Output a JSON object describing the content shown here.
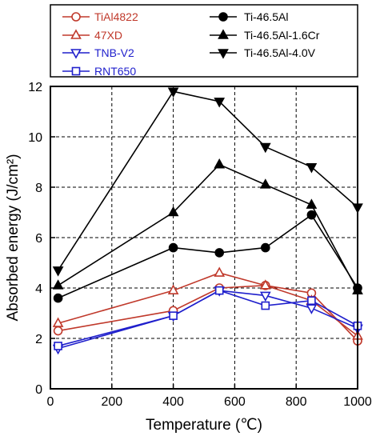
{
  "chart_data": {
    "type": "line",
    "xlabel": "Temperature (℃)",
    "ylabel": "Absorbed energy (J/cm²)",
    "xlim": [
      0,
      1000
    ],
    "ylim": [
      0,
      12
    ],
    "xticks": [
      "0",
      "200",
      "400",
      "600",
      "800",
      "1000"
    ],
    "yticks": [
      "0",
      "2",
      "4",
      "6",
      "8",
      "10",
      "12"
    ],
    "grid": true,
    "legend_position": "top",
    "series": [
      {
        "name": "TiAl4822",
        "color": "#c0392b",
        "marker": "circle-open",
        "x": [
          25,
          400,
          550,
          700,
          850,
          1000
        ],
        "y": [
          2.3,
          3.1,
          4.0,
          4.1,
          3.8,
          1.9
        ]
      },
      {
        "name": "47XD",
        "color": "#c0392b",
        "marker": "triangle-up-open",
        "x": [
          25,
          400,
          550,
          700,
          850,
          1000
        ],
        "y": [
          2.6,
          3.9,
          4.6,
          4.1,
          3.5,
          2.1
        ]
      },
      {
        "name": "TNB-V2",
        "color": "#1f1fcc",
        "marker": "triangle-down-open",
        "x": [
          25,
          400,
          550,
          700,
          850,
          1000
        ],
        "y": [
          1.6,
          2.9,
          3.9,
          3.7,
          3.2,
          2.4
        ]
      },
      {
        "name": "RNT650",
        "color": "#1f1fcc",
        "marker": "square-open",
        "x": [
          25,
          400,
          550,
          700,
          850,
          1000
        ],
        "y": [
          1.7,
          2.9,
          3.9,
          3.3,
          3.5,
          2.5
        ]
      },
      {
        "name": "Ti-46.5Al",
        "color": "#000000",
        "marker": "circle-filled",
        "x": [
          25,
          400,
          550,
          700,
          850,
          1000
        ],
        "y": [
          3.6,
          5.6,
          5.4,
          5.6,
          6.9,
          4.0
        ]
      },
      {
        "name": "Ti-46.5Al-1.6Cr",
        "color": "#000000",
        "marker": "triangle-up-filled",
        "x": [
          25,
          400,
          550,
          700,
          850,
          1000
        ],
        "y": [
          4.1,
          7.0,
          8.9,
          8.1,
          7.3,
          3.9
        ]
      },
      {
        "name": "Ti-46.5Al-4.0V",
        "color": "#000000",
        "marker": "triangle-down-filled",
        "x": [
          25,
          400,
          550,
          700,
          850,
          1000
        ],
        "y": [
          4.7,
          11.8,
          11.4,
          9.6,
          8.8,
          7.2
        ]
      }
    ]
  }
}
